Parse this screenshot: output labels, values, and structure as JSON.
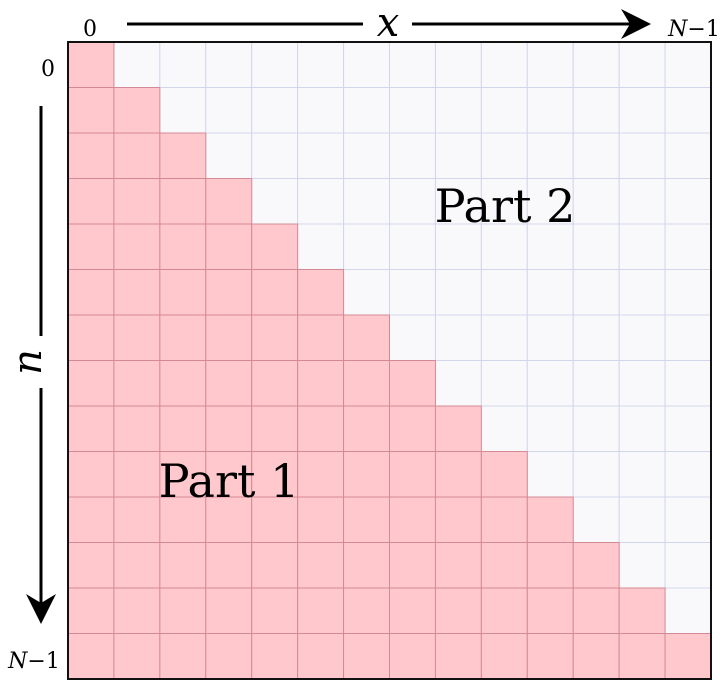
{
  "diagram": {
    "grid_size": 14,
    "x_axis": {
      "symbol": "x",
      "start_label": "0",
      "end_label_var": "N",
      "end_label_minus": "−1"
    },
    "y_axis": {
      "symbol": "n",
      "start_label": "0",
      "end_label_var": "N",
      "end_label_minus": "−1"
    },
    "regions": {
      "lower_label": "Part 1",
      "upper_label": "Part 2"
    },
    "colors": {
      "filled_cell": "#ffc8cc",
      "filled_grid_line": "#d48a96",
      "empty_cell": "#f9f9fc",
      "empty_grid_line": "#d2d6ea",
      "border": "#111111",
      "arrow": "#000000"
    }
  }
}
